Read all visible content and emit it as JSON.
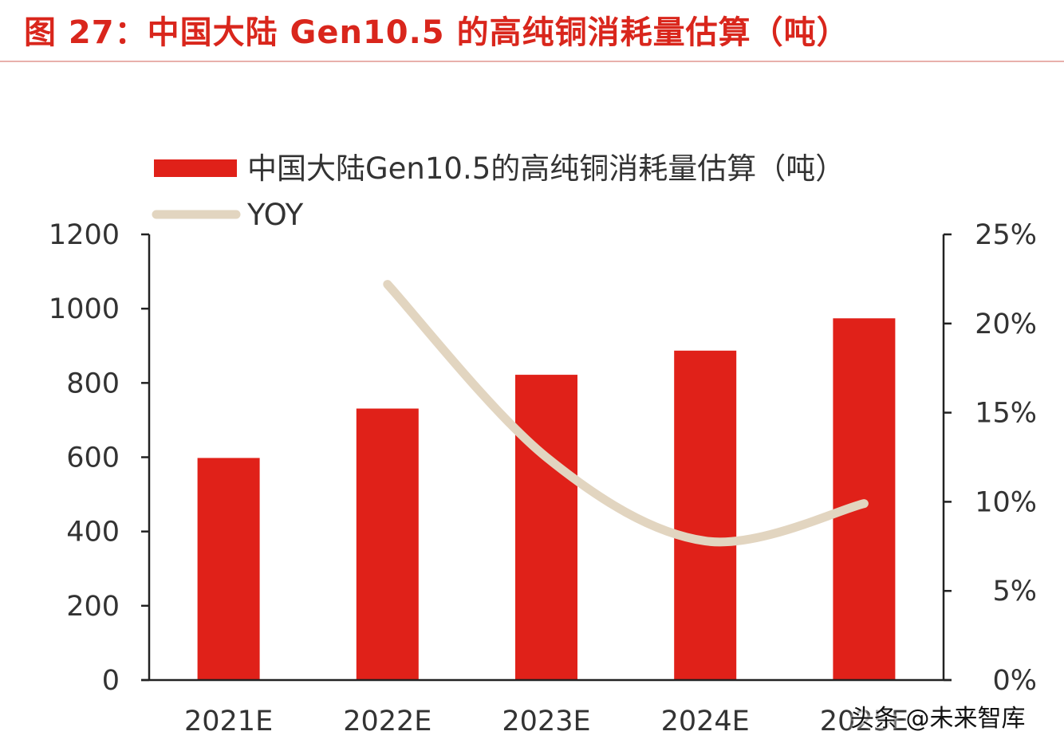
{
  "figure_title": "图 27：中国大陆 Gen10.5 的高纯铜消耗量估算（吨）",
  "watermark": "头条 @未来智库",
  "chart_data": {
    "type": "bar",
    "categories": [
      "2021E",
      "2022E",
      "2023E",
      "2024E",
      "2025E"
    ],
    "series": [
      {
        "name": "中国大陆Gen10.5的高纯铜消耗量估算（吨）",
        "type": "bar",
        "axis": "left",
        "color": "#e02119",
        "values": [
          598,
          731,
          822,
          887,
          974
        ]
      },
      {
        "name": "YOY",
        "type": "line",
        "axis": "right",
        "color": "#e2d5c0",
        "values": [
          null,
          22.2,
          12.5,
          7.8,
          9.9
        ]
      }
    ],
    "y_left": {
      "range": [
        0,
        1200
      ],
      "ticks": [
        "0",
        "200",
        "400",
        "600",
        "800",
        "1000",
        "1200"
      ]
    },
    "y_right": {
      "range": [
        0,
        25
      ],
      "ticks": [
        "0%",
        "5%",
        "10%",
        "15%",
        "20%",
        "25%"
      ]
    },
    "legend_position": "top-left",
    "grid": false
  }
}
